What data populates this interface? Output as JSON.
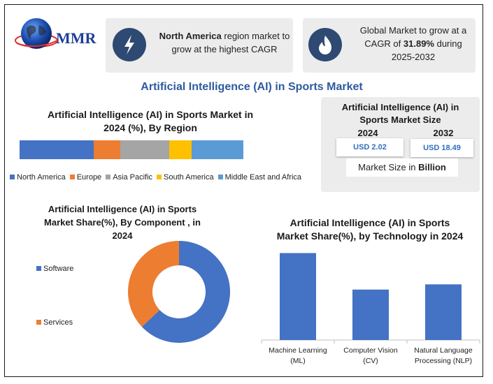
{
  "brand": {
    "logo_text": "MMR"
  },
  "info_cards": [
    {
      "icon": "lightning-icon",
      "text_bold": "North America",
      "text_rest": " region market to grow at the highest CAGR"
    },
    {
      "icon": "flame-icon",
      "text_pre": "Global Market to grow at a CAGR of ",
      "text_bold": "31.89%",
      "text_post": " during 2025-2032"
    }
  ],
  "main_title": "Artificial Intelligence (AI) in Sports Market",
  "market_size": {
    "title": "Artificial Intelligence (AI) in Sports Market Size",
    "year_a": "2024",
    "year_b": "2032",
    "value_a": "USD 2.02",
    "value_b": "USD 18.49",
    "unit_pre": "Market Size in ",
    "unit_bold": "Billion"
  },
  "colors": {
    "accent_title": "#2e5a9e",
    "blue": "#4472c4",
    "orange": "#ed7d31",
    "gray": "#a5a5a5",
    "yellow": "#ffc000",
    "lightblue": "#5b9bd5",
    "icon_bg": "#2e4a73"
  },
  "chart_data": [
    {
      "type": "bar",
      "orientation": "horizontal-stacked",
      "title": "Artificial Intelligence (AI) in Sports Market in 2024 (%), By Region",
      "series": [
        {
          "name": "North America",
          "values": [
            33
          ],
          "color": "#4472c4"
        },
        {
          "name": "Europe",
          "values": [
            12
          ],
          "color": "#ed7d31"
        },
        {
          "name": "Asia Pacific",
          "values": [
            22
          ],
          "color": "#a5a5a5"
        },
        {
          "name": "South America",
          "values": [
            10
          ],
          "color": "#ffc000"
        },
        {
          "name": "Middle East and Africa",
          "values": [
            23
          ],
          "color": "#5b9bd5"
        }
      ],
      "legend": "bottom"
    },
    {
      "type": "pie",
      "style": "donut",
      "title": "Artificial Intelligence (AI) in Sports Market Share(%), By Component , in 2024",
      "categories": [
        "Software",
        "Services"
      ],
      "values": [
        63,
        37
      ],
      "colors": [
        "#4472c4",
        "#ed7d31"
      ],
      "legend": "left"
    },
    {
      "type": "bar",
      "title": "Artificial Intelligence (AI) in Sports Market Share(%), by Technology in 2024",
      "categories": [
        [
          "Machine Learning",
          "(ML)"
        ],
        [
          "Computer Vision",
          "(CV)"
        ],
        [
          "Natural Language",
          "Processing (NLP)"
        ]
      ],
      "values": [
        50,
        29,
        32
      ],
      "ylim": [
        0,
        55
      ],
      "color": "#4472c4"
    }
  ]
}
